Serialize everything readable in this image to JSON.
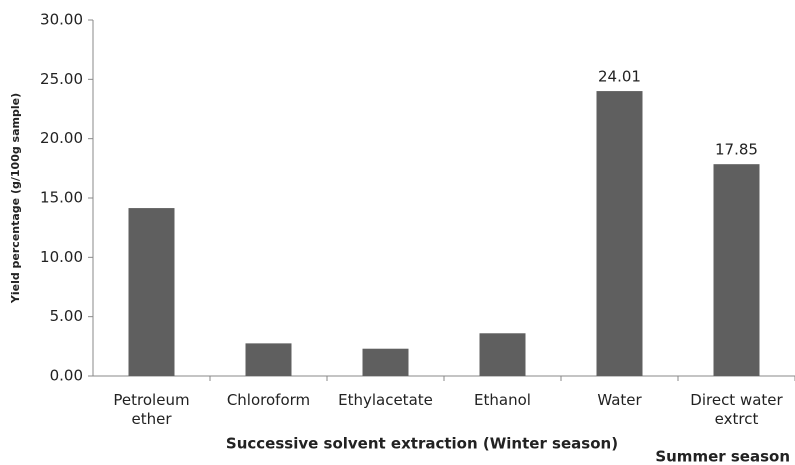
{
  "chart_data": {
    "type": "bar",
    "categories": [
      "Petroleum ether",
      "Chloroform",
      "Ethylacetate",
      "Ethanol",
      "Water",
      "Direct water extrct"
    ],
    "values": [
      14.15,
      2.75,
      2.3,
      3.6,
      24.01,
      17.85
    ],
    "value_labels": [
      null,
      null,
      null,
      null,
      "24.01",
      "17.85"
    ],
    "color": "#5f5f5f",
    "ylim": [
      0,
      30
    ],
    "yticks": [
      {
        "value": 0,
        "label": "0.00"
      },
      {
        "value": 5,
        "label": "5.00"
      },
      {
        "value": 10,
        "label": "10.00"
      },
      {
        "value": 15,
        "label": "15.00"
      },
      {
        "value": 20,
        "label": "20.00"
      },
      {
        "value": 25,
        "label": "25.00"
      },
      {
        "value": 30,
        "label": "30.00"
      }
    ],
    "grid": false,
    "y_label": "Yield percentage (g/100g sample)",
    "x_label": "Successive solvent extraction (Winter season)",
    "annotation": "Summer season"
  }
}
